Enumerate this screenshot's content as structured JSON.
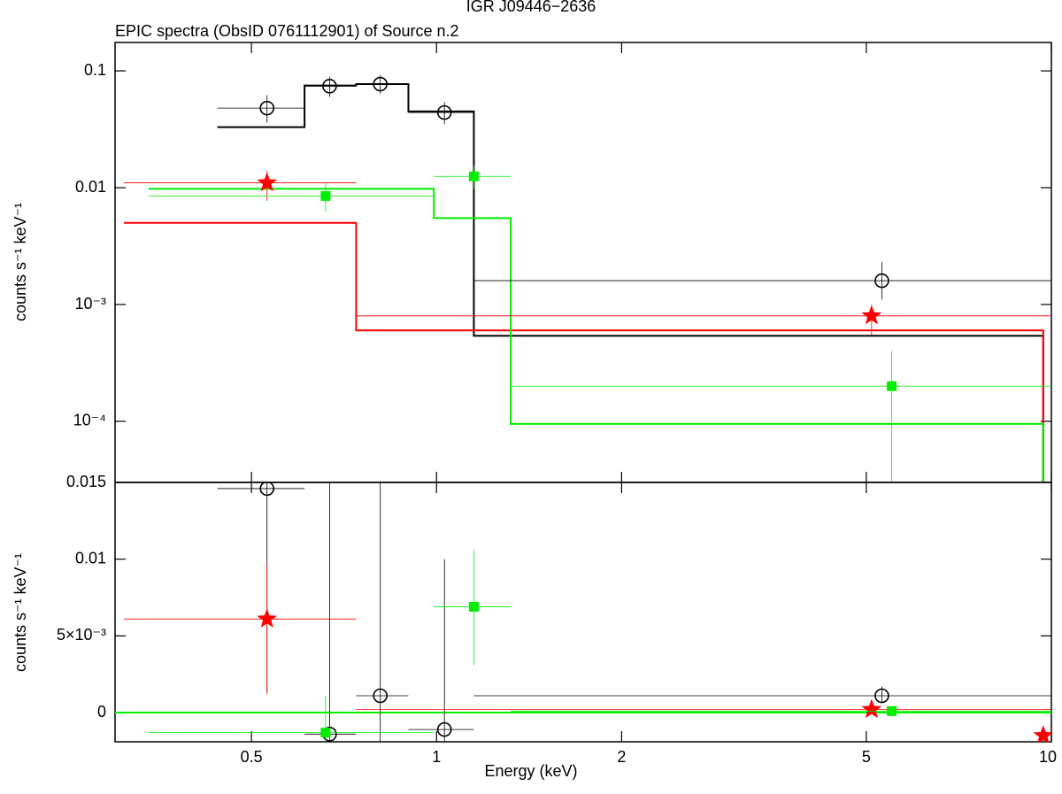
{
  "chart_data": [
    {
      "type": "spectrum",
      "title": "IGR J09446−2636",
      "subtitle": "EPIC spectra (ObsID 0761112901) of Source n.2",
      "ylabel": "counts s⁻¹ keV⁻¹",
      "xlog": true,
      "ylog": true,
      "xlim": [
        0.3,
        10
      ],
      "ylim": [
        3e-05,
        0.175
      ],
      "yticks": [
        0.1,
        0.01,
        {
          "value": 0.001,
          "label": "10⁻³"
        },
        {
          "value": 0.0001,
          "label": "10⁻⁴"
        }
      ],
      "series": [
        {
          "color": "#000000",
          "marker": "circle",
          "x": [
            0.53,
            0.67,
            0.81,
            1.03,
            5.3
          ],
          "x_lo": [
            0.44,
            0.61,
            0.74,
            0.9,
            1.15
          ],
          "x_hi": [
            0.61,
            0.74,
            0.9,
            1.15,
            10
          ],
          "values": [
            0.048,
            0.074,
            0.077,
            0.044,
            0.0016
          ],
          "y_lo": [
            0.036,
            0.06,
            0.064,
            0.035,
            0.0011
          ],
          "y_hi": [
            0.062,
            0.089,
            0.092,
            0.054,
            0.0023
          ]
        },
        {
          "color": "#ff0000",
          "marker": "star",
          "x": [
            0.53,
            5.1
          ],
          "x_lo": [
            0.31,
            0.74
          ],
          "x_hi": [
            0.74,
            10
          ],
          "values": [
            0.011,
            0.0008
          ],
          "y_lo": [
            0.0077,
            0.00055
          ],
          "y_hi": [
            0.014,
            0.001
          ]
        },
        {
          "color": "#00ee00",
          "marker": "square",
          "x": [
            0.66,
            1.15,
            5.5
          ],
          "x_lo": [
            0.34,
            0.99,
            1.32
          ],
          "x_hi": [
            0.99,
            1.32,
            10
          ],
          "values": [
            0.0085,
            0.0125,
            0.0002
          ],
          "y_lo": [
            0.0062,
            0.0098,
            1e-05
          ],
          "y_hi": [
            0.011,
            0.0155,
            0.0004
          ]
        }
      ],
      "models": [
        {
          "color": "#000000",
          "edges": [
            0.44,
            0.61,
            0.74,
            0.9,
            1.15,
            9.7
          ],
          "values": [
            0.033,
            0.075,
            0.077,
            0.045,
            0.00054
          ]
        },
        {
          "color": "#ff0000",
          "edges": [
            0.31,
            0.74,
            9.7
          ],
          "values": [
            0.005,
            0.0006
          ]
        },
        {
          "color": "#00ee00",
          "edges": [
            0.34,
            0.99,
            1.32,
            9.7
          ],
          "values": [
            0.0098,
            0.0055,
            9.5e-05
          ]
        }
      ]
    },
    {
      "type": "spectrum",
      "ylabel": "counts s⁻¹ keV⁻¹",
      "xlabel": "Energy (keV)",
      "xlog": true,
      "ylog": false,
      "xlim": [
        0.3,
        10
      ],
      "ylim": [
        -0.0019,
        0.015
      ],
      "xticks": [
        0.5,
        1,
        2,
        5,
        10
      ],
      "yticks": [
        0,
        {
          "value": 0.005,
          "label": "5×10⁻³"
        },
        0.01,
        0.015
      ],
      "reference_line": {
        "value": 0,
        "color": "#00ee00"
      },
      "series": [
        {
          "color": "#000000",
          "marker": "circle",
          "x": [
            0.53,
            0.67,
            0.81,
            1.03,
            5.3
          ],
          "x_lo": [
            0.44,
            0.61,
            0.74,
            0.9,
            1.15
          ],
          "x_hi": [
            0.61,
            0.74,
            0.9,
            1.15,
            10
          ],
          "values": [
            0.0146,
            -0.0014,
            0.0011,
            -0.0011,
            0.0011
          ],
          "y_lo": [
            0.0013,
            -0.003,
            -0.003,
            -0.003,
            0.0006
          ],
          "y_hi": [
            0.02,
            0.02,
            0.02,
            0.01,
            0.0017
          ]
        },
        {
          "color": "#ff0000",
          "marker": "star",
          "x": [
            0.53,
            5.1,
            9.7
          ],
          "x_lo": [
            0.31,
            0.74,
            9.7
          ],
          "x_hi": [
            0.74,
            10,
            9.7
          ],
          "values": [
            0.0061,
            0.0002,
            -0.0015
          ],
          "y_lo": [
            0.0012,
            -0.0001,
            -0.0015
          ],
          "y_hi": [
            0.0097,
            0.0005,
            -0.0015
          ]
        },
        {
          "color": "#00ee00",
          "marker": "square",
          "x": [
            0.66,
            1.15,
            5.5
          ],
          "x_lo": [
            0.34,
            0.99,
            1.32
          ],
          "x_hi": [
            0.99,
            1.32,
            10
          ],
          "values": [
            -0.0013,
            0.0069,
            0.0001
          ],
          "y_lo": [
            -0.0019,
            0.0031,
            -0.0001
          ],
          "y_hi": [
            0.0011,
            0.0106,
            0.0003
          ]
        }
      ]
    }
  ]
}
